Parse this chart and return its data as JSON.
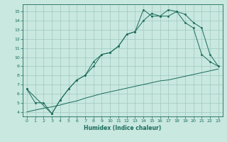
{
  "xlabel": "Humidex (Indice chaleur)",
  "ylabel": "",
  "background_color": "#c8e8e0",
  "grid_color": "#a0c8c0",
  "line_color": "#1a6b5a",
  "xlim": [
    -0.5,
    23.5
  ],
  "ylim": [
    3.5,
    15.8
  ],
  "xticks": [
    0,
    1,
    2,
    3,
    4,
    5,
    6,
    7,
    8,
    9,
    10,
    11,
    12,
    13,
    14,
    15,
    16,
    17,
    18,
    19,
    20,
    21,
    22,
    23
  ],
  "yticks": [
    4,
    5,
    6,
    7,
    8,
    9,
    10,
    11,
    12,
    13,
    14,
    15
  ],
  "line1_x": [
    0,
    1,
    2,
    3,
    4,
    5,
    6,
    7,
    8,
    9,
    10,
    11,
    12,
    13,
    14,
    15,
    16,
    17,
    18,
    19,
    20,
    21,
    22,
    23
  ],
  "line1_y": [
    4.0,
    4.2,
    4.4,
    4.55,
    4.75,
    5.0,
    5.2,
    5.5,
    5.75,
    6.0,
    6.2,
    6.4,
    6.6,
    6.8,
    7.0,
    7.2,
    7.4,
    7.5,
    7.7,
    7.9,
    8.1,
    8.3,
    8.5,
    8.7
  ],
  "line2_x": [
    0,
    1,
    2,
    3,
    4,
    5,
    6,
    7,
    8,
    9,
    10,
    11,
    12,
    13,
    14,
    15,
    16,
    17,
    18,
    19,
    20,
    21,
    22,
    23
  ],
  "line2_y": [
    6.5,
    5.0,
    5.0,
    3.8,
    5.3,
    6.5,
    7.5,
    8.0,
    9.5,
    10.3,
    10.5,
    11.2,
    12.5,
    12.8,
    15.2,
    14.5,
    14.5,
    15.2,
    15.0,
    13.8,
    13.2,
    10.3,
    9.5,
    9.0
  ],
  "line3_x": [
    0,
    3,
    4,
    5,
    6,
    7,
    8,
    9,
    10,
    11,
    12,
    13,
    14,
    15,
    16,
    17,
    18,
    19,
    20,
    21,
    22,
    23
  ],
  "line3_y": [
    6.5,
    3.8,
    5.3,
    6.5,
    7.5,
    8.0,
    9.0,
    10.3,
    10.5,
    11.2,
    12.5,
    12.8,
    14.0,
    14.8,
    14.5,
    14.5,
    15.0,
    14.7,
    13.8,
    13.2,
    10.3,
    9.0
  ]
}
